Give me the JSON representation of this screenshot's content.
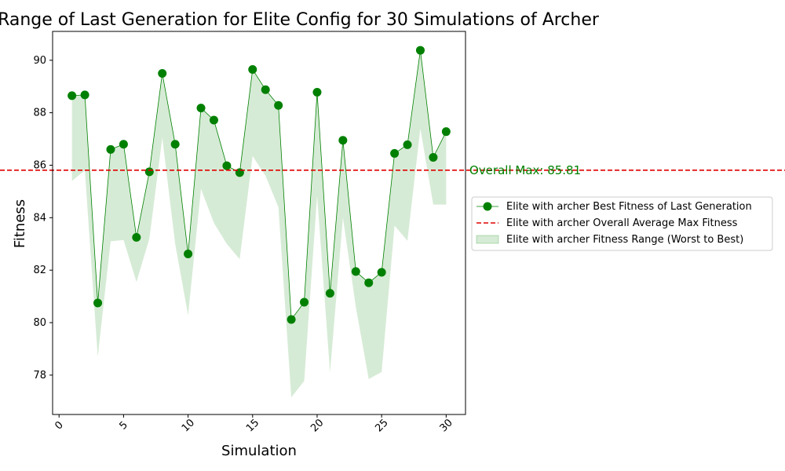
{
  "chart_data": {
    "type": "line",
    "title": "Range of Last Generation for Elite Config for 30 Simulations of Archer",
    "xlabel": "Simulation",
    "ylabel": "Fitness",
    "xlim": [
      -0.5,
      31.5
    ],
    "ylim": [
      76.5,
      91.1
    ],
    "x_ticks": [
      0,
      5,
      10,
      15,
      20,
      25,
      30
    ],
    "y_ticks": [
      78,
      80,
      82,
      84,
      86,
      88,
      90
    ],
    "grid": false,
    "legend_position": "center-right outside",
    "x": [
      1,
      2,
      3,
      4,
      5,
      6,
      7,
      8,
      9,
      10,
      11,
      12,
      13,
      14,
      15,
      16,
      17,
      18,
      19,
      20,
      21,
      22,
      23,
      24,
      25,
      26,
      27,
      28,
      29,
      30
    ],
    "series": [
      {
        "name": "Elite with archer Best Fitness of Last Generation",
        "kind": "line-markers",
        "color": "#008000",
        "values": [
          88.65,
          88.68,
          80.75,
          86.6,
          86.8,
          83.25,
          85.75,
          89.5,
          86.8,
          82.62,
          88.18,
          87.72,
          85.98,
          85.72,
          89.65,
          88.88,
          88.28,
          80.12,
          80.78,
          88.78,
          81.12,
          86.95,
          81.95,
          81.52,
          81.92,
          86.45,
          86.78,
          90.38,
          86.3,
          87.28
        ]
      },
      {
        "name": "Elite with archer Overall Average Max Fitness",
        "kind": "hline",
        "color": "#e00000",
        "value": 85.81
      },
      {
        "name": "Elite with archer Fitness Range (Worst to Best)",
        "kind": "band",
        "color": "#008000",
        "lower": [
          85.4,
          85.8,
          78.7,
          83.1,
          83.15,
          81.55,
          83.2,
          87.05,
          83.0,
          80.28,
          85.1,
          83.8,
          83.0,
          82.42,
          86.35,
          85.6,
          84.4,
          77.15,
          77.78,
          84.85,
          78.1,
          84.0,
          80.6,
          77.85,
          78.12,
          83.7,
          83.12,
          87.4,
          84.5,
          84.5
        ],
        "upper": [
          88.65,
          88.68,
          80.75,
          86.6,
          86.8,
          83.25,
          85.75,
          89.5,
          86.8,
          82.62,
          88.18,
          87.72,
          85.98,
          85.72,
          89.65,
          88.88,
          88.28,
          80.12,
          80.78,
          88.78,
          81.12,
          86.95,
          81.95,
          81.52,
          81.92,
          86.45,
          86.78,
          90.38,
          86.3,
          87.28
        ]
      }
    ],
    "annotations": [
      {
        "text": "Overall Max: 85.81",
        "color": "#008000"
      }
    ]
  }
}
